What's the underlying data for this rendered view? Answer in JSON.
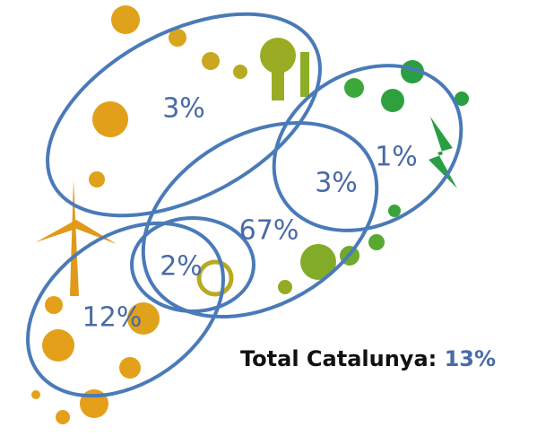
{
  "regions": [
    {
      "label": "3%"
    },
    {
      "label": "1%"
    },
    {
      "label": "3%"
    },
    {
      "label": "67%"
    },
    {
      "label": "2%"
    },
    {
      "label": "12%"
    }
  ],
  "total": {
    "label": "Total Catalunya:",
    "value": "13%"
  }
}
